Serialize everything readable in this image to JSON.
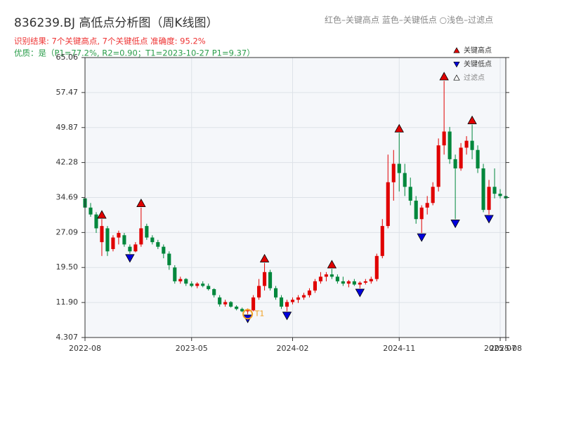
{
  "chart_data": {
    "type": "candlestick",
    "title": "836239.BJ 高低点分析图（周K线图）",
    "header_note": "红色–关键高点      蓝色–关键低点    ○浅色–过滤点",
    "subtitle": "识别结果: 7个关键高点, 7个关键低点   准确度: 95.2%",
    "quality_note": "优质：是（P1=77.2%, R2=0.90；T1=2023-10-27 P1=9.37）",
    "categories": [
      "2022-08",
      null,
      null,
      null,
      null,
      null,
      null,
      null,
      null,
      null,
      null,
      null,
      null,
      null,
      null,
      null,
      null,
      null,
      null,
      "2023-05",
      null,
      null,
      null,
      null,
      null,
      null,
      null,
      null,
      null,
      null,
      null,
      null,
      null,
      null,
      null,
      null,
      null,
      "2024-02",
      null,
      null,
      null,
      null,
      null,
      null,
      null,
      null,
      null,
      null,
      null,
      null,
      null,
      null,
      null,
      null,
      null,
      null,
      "2024-11",
      null,
      null,
      null,
      null,
      null,
      null,
      null,
      null,
      null,
      null,
      null,
      null,
      null,
      null,
      null,
      null,
      null,
      "2025-07",
      "2025-08"
    ],
    "open": [
      34.5,
      32.5,
      31.0,
      25.0,
      28.0,
      23.5,
      26.0,
      26.5,
      24.0,
      23.0,
      24.5,
      28.5,
      26.0,
      25.0,
      24.0,
      22.5,
      19.5,
      16.5,
      17.0,
      16.0,
      15.5,
      16.0,
      15.5,
      14.8,
      13.0,
      11.5,
      12.0,
      11.0,
      10.5,
      10.0,
      10.2,
      13.0,
      15.5,
      18.5,
      15.0,
      13.0,
      11.0,
      12.0,
      12.5,
      13.0,
      13.5,
      14.5,
      16.5,
      17.5,
      18.0,
      17.5,
      16.5,
      16.0,
      16.5,
      15.8,
      16.2,
      16.5,
      17.0,
      22.0,
      28.5,
      38.0,
      42.0,
      40.0,
      37.0,
      34.0,
      30.0,
      32.5,
      33.5,
      37.0,
      46.0,
      49.0,
      43.0,
      41.0,
      45.5,
      47.0,
      45.0,
      41.0,
      32.0,
      37.0,
      35.5,
      35.0
    ],
    "high": [
      35.0,
      33.5,
      31.5,
      30.0,
      28.5,
      26.5,
      27.5,
      27.0,
      24.5,
      25.0,
      32.5,
      29.0,
      26.5,
      25.5,
      24.5,
      23.0,
      20.0,
      17.5,
      17.2,
      16.5,
      16.3,
      16.5,
      16.0,
      15.0,
      13.5,
      12.5,
      12.2,
      11.3,
      10.8,
      10.6,
      13.5,
      17.0,
      20.5,
      19.0,
      15.5,
      13.5,
      12.5,
      13.0,
      13.5,
      14.0,
      15.0,
      17.0,
      18.5,
      18.5,
      19.2,
      18.0,
      17.5,
      16.8,
      17.0,
      16.5,
      17.0,
      17.5,
      22.5,
      30.0,
      44.0,
      45.0,
      48.7,
      42.0,
      39.0,
      35.0,
      33.0,
      35.0,
      38.0,
      47.5,
      60.0,
      50.0,
      44.0,
      46.5,
      48.0,
      50.5,
      46.0,
      42.0,
      38.5,
      41.0,
      36.5,
      36.0
    ],
    "low": [
      32.0,
      30.5,
      27.0,
      22.0,
      22.0,
      23.0,
      24.5,
      24.0,
      22.5,
      22.8,
      24.0,
      25.5,
      24.5,
      23.5,
      21.5,
      19.0,
      16.0,
      16.0,
      15.5,
      15.2,
      15.0,
      15.2,
      14.5,
      13.0,
      11.0,
      11.0,
      10.8,
      10.2,
      9.8,
      9.37,
      10.0,
      12.5,
      14.5,
      14.5,
      12.5,
      10.5,
      10.0,
      11.5,
      11.8,
      12.5,
      13.0,
      14.0,
      16.0,
      16.5,
      17.0,
      16.0,
      15.5,
      15.2,
      15.5,
      15.0,
      15.8,
      16.0,
      16.5,
      21.5,
      28.0,
      34.0,
      36.0,
      35.0,
      33.0,
      29.0,
      27.0,
      31.0,
      33.0,
      36.0,
      44.0,
      42.0,
      30.0,
      40.5,
      44.0,
      43.0,
      40.0,
      31.5,
      31.0,
      34.5,
      34.5,
      34.0
    ],
    "close": [
      32.5,
      31.0,
      28.0,
      28.5,
      23.0,
      26.0,
      27.0,
      24.5,
      23.0,
      24.5,
      28.0,
      26.0,
      25.0,
      24.0,
      22.5,
      20.0,
      16.5,
      17.0,
      16.0,
      15.5,
      16.0,
      15.5,
      14.8,
      13.5,
      11.5,
      12.0,
      11.0,
      10.5,
      10.0,
      10.2,
      13.0,
      15.5,
      18.5,
      15.0,
      13.0,
      11.0,
      12.0,
      12.5,
      13.0,
      13.5,
      14.5,
      16.5,
      17.5,
      18.0,
      17.5,
      16.5,
      16.0,
      16.5,
      15.8,
      16.2,
      16.5,
      17.0,
      22.0,
      28.5,
      38.0,
      42.0,
      40.0,
      37.0,
      34.0,
      30.0,
      32.5,
      33.5,
      37.0,
      46.0,
      49.0,
      43.0,
      41.0,
      45.5,
      47.0,
      45.0,
      41.0,
      32.0,
      37.0,
      35.5,
      35.0,
      34.5
    ],
    "up_color": "#e00000",
    "down_color": "#00873c",
    "markers": [
      {
        "name": "关键高点",
        "color": "#e00000",
        "shape": "up",
        "values": [
          null,
          null,
          null,
          30.0,
          null,
          null,
          null,
          null,
          null,
          null,
          32.5,
          null,
          null,
          null,
          null,
          null,
          null,
          null,
          null,
          null,
          null,
          null,
          null,
          null,
          null,
          null,
          null,
          null,
          null,
          null,
          null,
          null,
          20.5,
          null,
          null,
          null,
          null,
          null,
          null,
          null,
          null,
          null,
          null,
          null,
          19.2,
          null,
          null,
          null,
          null,
          null,
          null,
          null,
          null,
          null,
          null,
          null,
          48.7,
          null,
          null,
          null,
          null,
          null,
          null,
          null,
          60.0,
          null,
          null,
          null,
          null,
          50.5,
          null,
          null,
          null,
          null,
          null,
          null
        ]
      },
      {
        "name": "关键低点",
        "color": "#0000dd",
        "shape": "down",
        "values": [
          null,
          null,
          null,
          null,
          null,
          null,
          null,
          null,
          22.5,
          null,
          null,
          null,
          null,
          null,
          null,
          null,
          null,
          null,
          null,
          null,
          null,
          null,
          null,
          null,
          null,
          null,
          null,
          null,
          null,
          9.37,
          null,
          null,
          null,
          null,
          null,
          null,
          10.0,
          null,
          null,
          null,
          null,
          null,
          null,
          null,
          null,
          null,
          null,
          null,
          null,
          15.0,
          null,
          null,
          null,
          null,
          null,
          null,
          null,
          null,
          null,
          null,
          27.0,
          null,
          null,
          null,
          null,
          null,
          30.0,
          null,
          null,
          null,
          null,
          null,
          31.0,
          null,
          null,
          null
        ]
      },
      {
        "name": "过滤点",
        "color": "#ffffff",
        "shape": "up"
      }
    ],
    "annotation": {
      "text": "T1",
      "color": "#f0a020",
      "values": [
        null,
        null,
        null,
        null,
        null,
        null,
        null,
        null,
        null,
        null,
        null,
        null,
        null,
        null,
        null,
        null,
        null,
        null,
        null,
        null,
        null,
        null,
        null,
        null,
        null,
        null,
        null,
        null,
        null,
        9.37,
        null,
        null,
        null,
        null,
        null,
        null,
        null,
        null,
        null,
        null,
        null,
        null,
        null,
        null,
        null,
        null,
        null,
        null,
        null,
        null,
        null,
        null,
        null,
        null,
        null,
        null,
        null,
        null,
        null,
        null,
        null,
        null,
        null,
        null,
        null,
        null,
        null,
        null,
        null,
        null,
        null,
        null,
        null,
        null,
        null,
        null
      ]
    },
    "ylim": [
      4.307,
      65.06
    ],
    "yticks": [
      4.307,
      {
        "value": 11.9,
        "label": "11.90"
      },
      {
        "value": 19.5,
        "label": "19.50"
      },
      27.09,
      34.69,
      42.28,
      49.87,
      57.47,
      65.06
    ],
    "grid": true
  }
}
